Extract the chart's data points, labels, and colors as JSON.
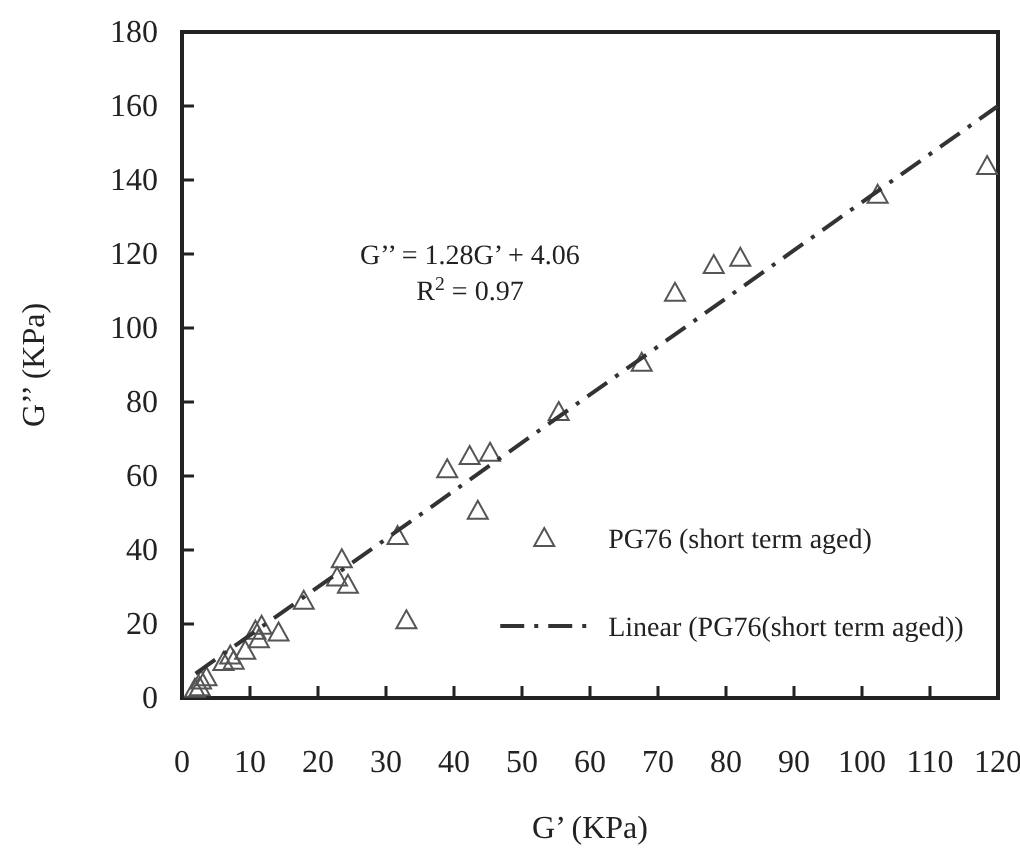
{
  "chart_data": {
    "type": "scatter",
    "xlabel": "G’ (KPa)",
    "ylabel": "G’’ (KPa)",
    "xlim": [
      0,
      120
    ],
    "xticks": [
      0,
      10,
      20,
      30,
      40,
      50,
      60,
      70,
      80,
      90,
      100,
      110,
      120
    ],
    "ylim": [
      0,
      180
    ],
    "yticks": [
      0,
      20,
      40,
      60,
      80,
      100,
      120,
      140,
      160,
      180
    ],
    "grid": false,
    "legend": "bottom right",
    "annotations": [
      "G’’ = 1.28G’ + 4.06",
      "R$^{2}$ = 0.97"
    ],
    "series": [
      {
        "name": "PG76 (short term aged)",
        "color": "#555555",
        "marker": "triangle",
        "x": [
          118.4,
          102.3,
          82.1,
          78.2,
          72.5,
          67.6,
          55.4,
          45.3,
          42.3,
          39,
          43.5,
          33,
          31.7,
          23.5,
          22.8,
          24.4,
          17.9,
          14.2,
          11.7,
          10.8,
          11.3,
          9.3,
          7.6,
          7.1,
          6.1,
          3.6,
          2.8,
          1.9,
          2.6
        ],
        "values": [
          143.8,
          136,
          119,
          117,
          109.5,
          90.6,
          77.3,
          66.3,
          65.4,
          61.8,
          50.6,
          21,
          43.8,
          37.5,
          32.6,
          30.6,
          26.3,
          17.7,
          19.5,
          18.2,
          15.9,
          12.8,
          10.1,
          11.5,
          9.7,
          5.6,
          4.7,
          2.5,
          2.9
        ]
      },
      {
        "name": "Linear (PG76(short term aged))",
        "type": "line",
        "color": "#333333",
        "line_style": "dashed",
        "marker": "none",
        "x": [
          2,
          120
        ],
        "values": [
          6.6,
          160
        ]
      }
    ]
  }
}
